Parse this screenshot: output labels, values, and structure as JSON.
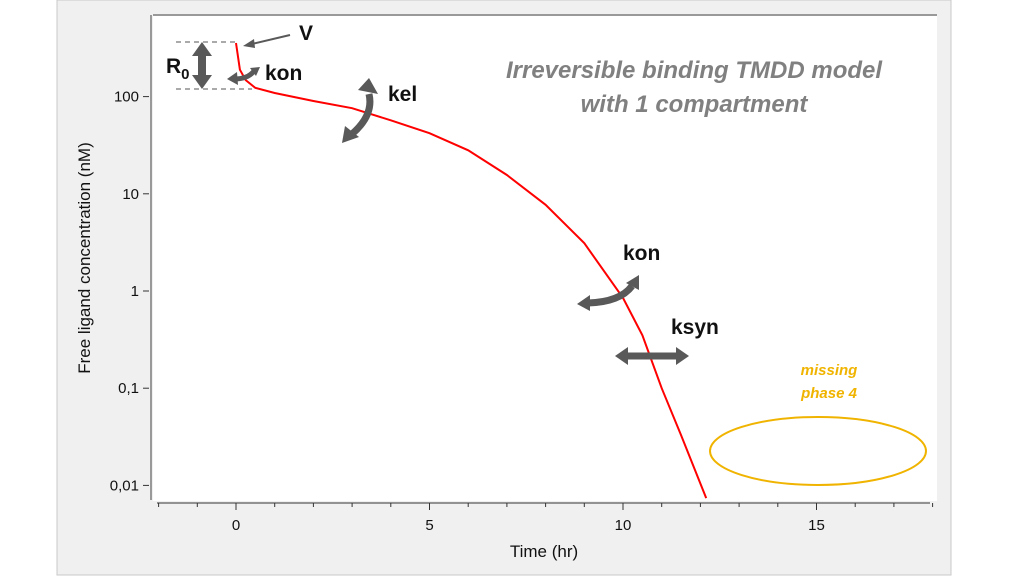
{
  "chart_data": {
    "type": "line",
    "title": "Irreversible binding TMDD model",
    "subtitle": "with 1 compartment",
    "xlabel": "Time (hr)",
    "ylabel": "Free ligand concentration (nM)",
    "xlim": [
      -2,
      18
    ],
    "ylim": [
      0.0074,
      700
    ],
    "yscale": "log",
    "grid": false,
    "x_ticks": [
      {
        "v": 0,
        "label": "0"
      },
      {
        "v": 5,
        "label": "5"
      },
      {
        "v": 10,
        "label": "10"
      },
      {
        "v": 15,
        "label": "15"
      }
    ],
    "y_ticks": [
      {
        "v": 100,
        "label": "100"
      },
      {
        "v": 10,
        "label": "10"
      },
      {
        "v": 1,
        "label": "1"
      },
      {
        "v": 0.1,
        "label": "0,1"
      },
      {
        "v": 0.01,
        "label": "0,01"
      }
    ],
    "series": [
      {
        "color": "#ff0000",
        "x": [
          0,
          0.1,
          0.25,
          0.5,
          1,
          2,
          3,
          4,
          5,
          6,
          7,
          8,
          9,
          10,
          10.5,
          11,
          11.5,
          12.15
        ],
        "y": [
          356,
          189,
          148,
          123,
          109,
          90,
          76,
          57,
          42,
          28,
          15.6,
          7.7,
          3.1,
          0.85,
          0.35,
          0.1,
          0.033,
          0.0074
        ]
      }
    ],
    "annotations": {
      "V": "V",
      "R0": "R",
      "R0_sub": "0",
      "kon1": "kon",
      "kel": "kel",
      "kon2": "kon",
      "ksyn": "ksyn",
      "missing_line1": "missing",
      "missing_line2": "phase 4"
    },
    "colors": {
      "curve": "#ff0000",
      "arrows": "#595959",
      "title": "#808080",
      "missing": "#f0b400"
    }
  }
}
